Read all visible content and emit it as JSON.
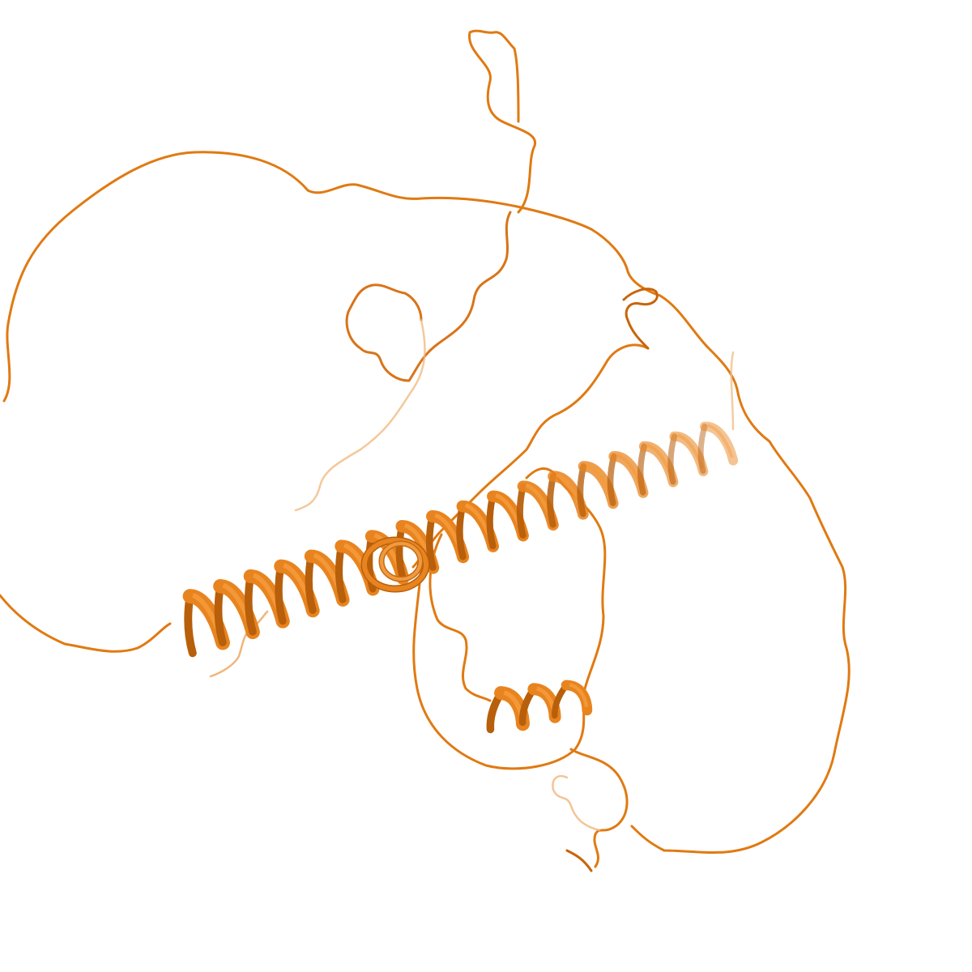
{
  "scene": {
    "subject": "protein-cartoon",
    "background_color": "#ffffff",
    "colors": {
      "coil": "#e07a12",
      "coil_dark": "#c8650a",
      "helix_light": "#f59a3a",
      "helix_mid": "#e8841f",
      "helix_dark": "#b85f0c",
      "highlight": "#ffd9a8"
    }
  }
}
